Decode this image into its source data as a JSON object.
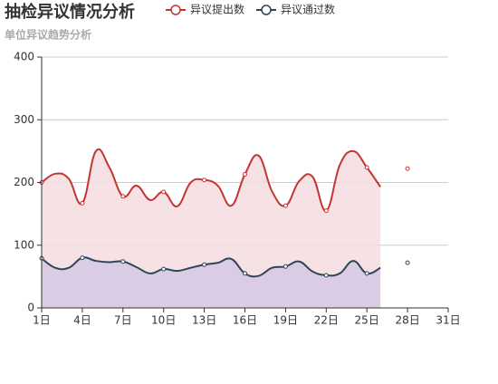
{
  "chart_data": {
    "type": "line",
    "title": "抽检异议情况分析",
    "subtitle": "单位异议趋势分析",
    "categories": [
      "1日",
      null,
      null,
      "4日",
      null,
      null,
      "7日",
      null,
      null,
      "10日",
      null,
      null,
      "13日",
      null,
      null,
      "16日",
      null,
      null,
      "19日",
      null,
      null,
      "22日",
      null,
      null,
      "25日",
      null,
      null,
      "28日",
      null,
      null,
      "31日"
    ],
    "series": [
      {
        "name": "异议提出数",
        "color": "#c23531",
        "area_color": "#f5dcdf",
        "values": [
          200,
          214,
          206,
          167,
          250,
          224,
          178,
          195,
          172,
          185,
          162,
          200,
          204,
          195,
          163,
          213,
          243,
          186,
          163,
          202,
          209,
          155,
          228,
          250,
          224,
          193,
          null,
          222,
          null,
          null,
          null
        ]
      },
      {
        "name": "异议通过数",
        "color": "#2f4554",
        "area_color": "#d6c8e6",
        "values": [
          79,
          64,
          64,
          80,
          75,
          73,
          74,
          65,
          55,
          62,
          59,
          64,
          69,
          72,
          78,
          55,
          51,
          64,
          66,
          74,
          58,
          52,
          55,
          75,
          55,
          64,
          null,
          72,
          null,
          null,
          null
        ]
      }
    ],
    "ylim": [
      0,
      400
    ],
    "yticks": [
      0,
      100,
      200,
      300,
      400
    ],
    "grid": true
  }
}
